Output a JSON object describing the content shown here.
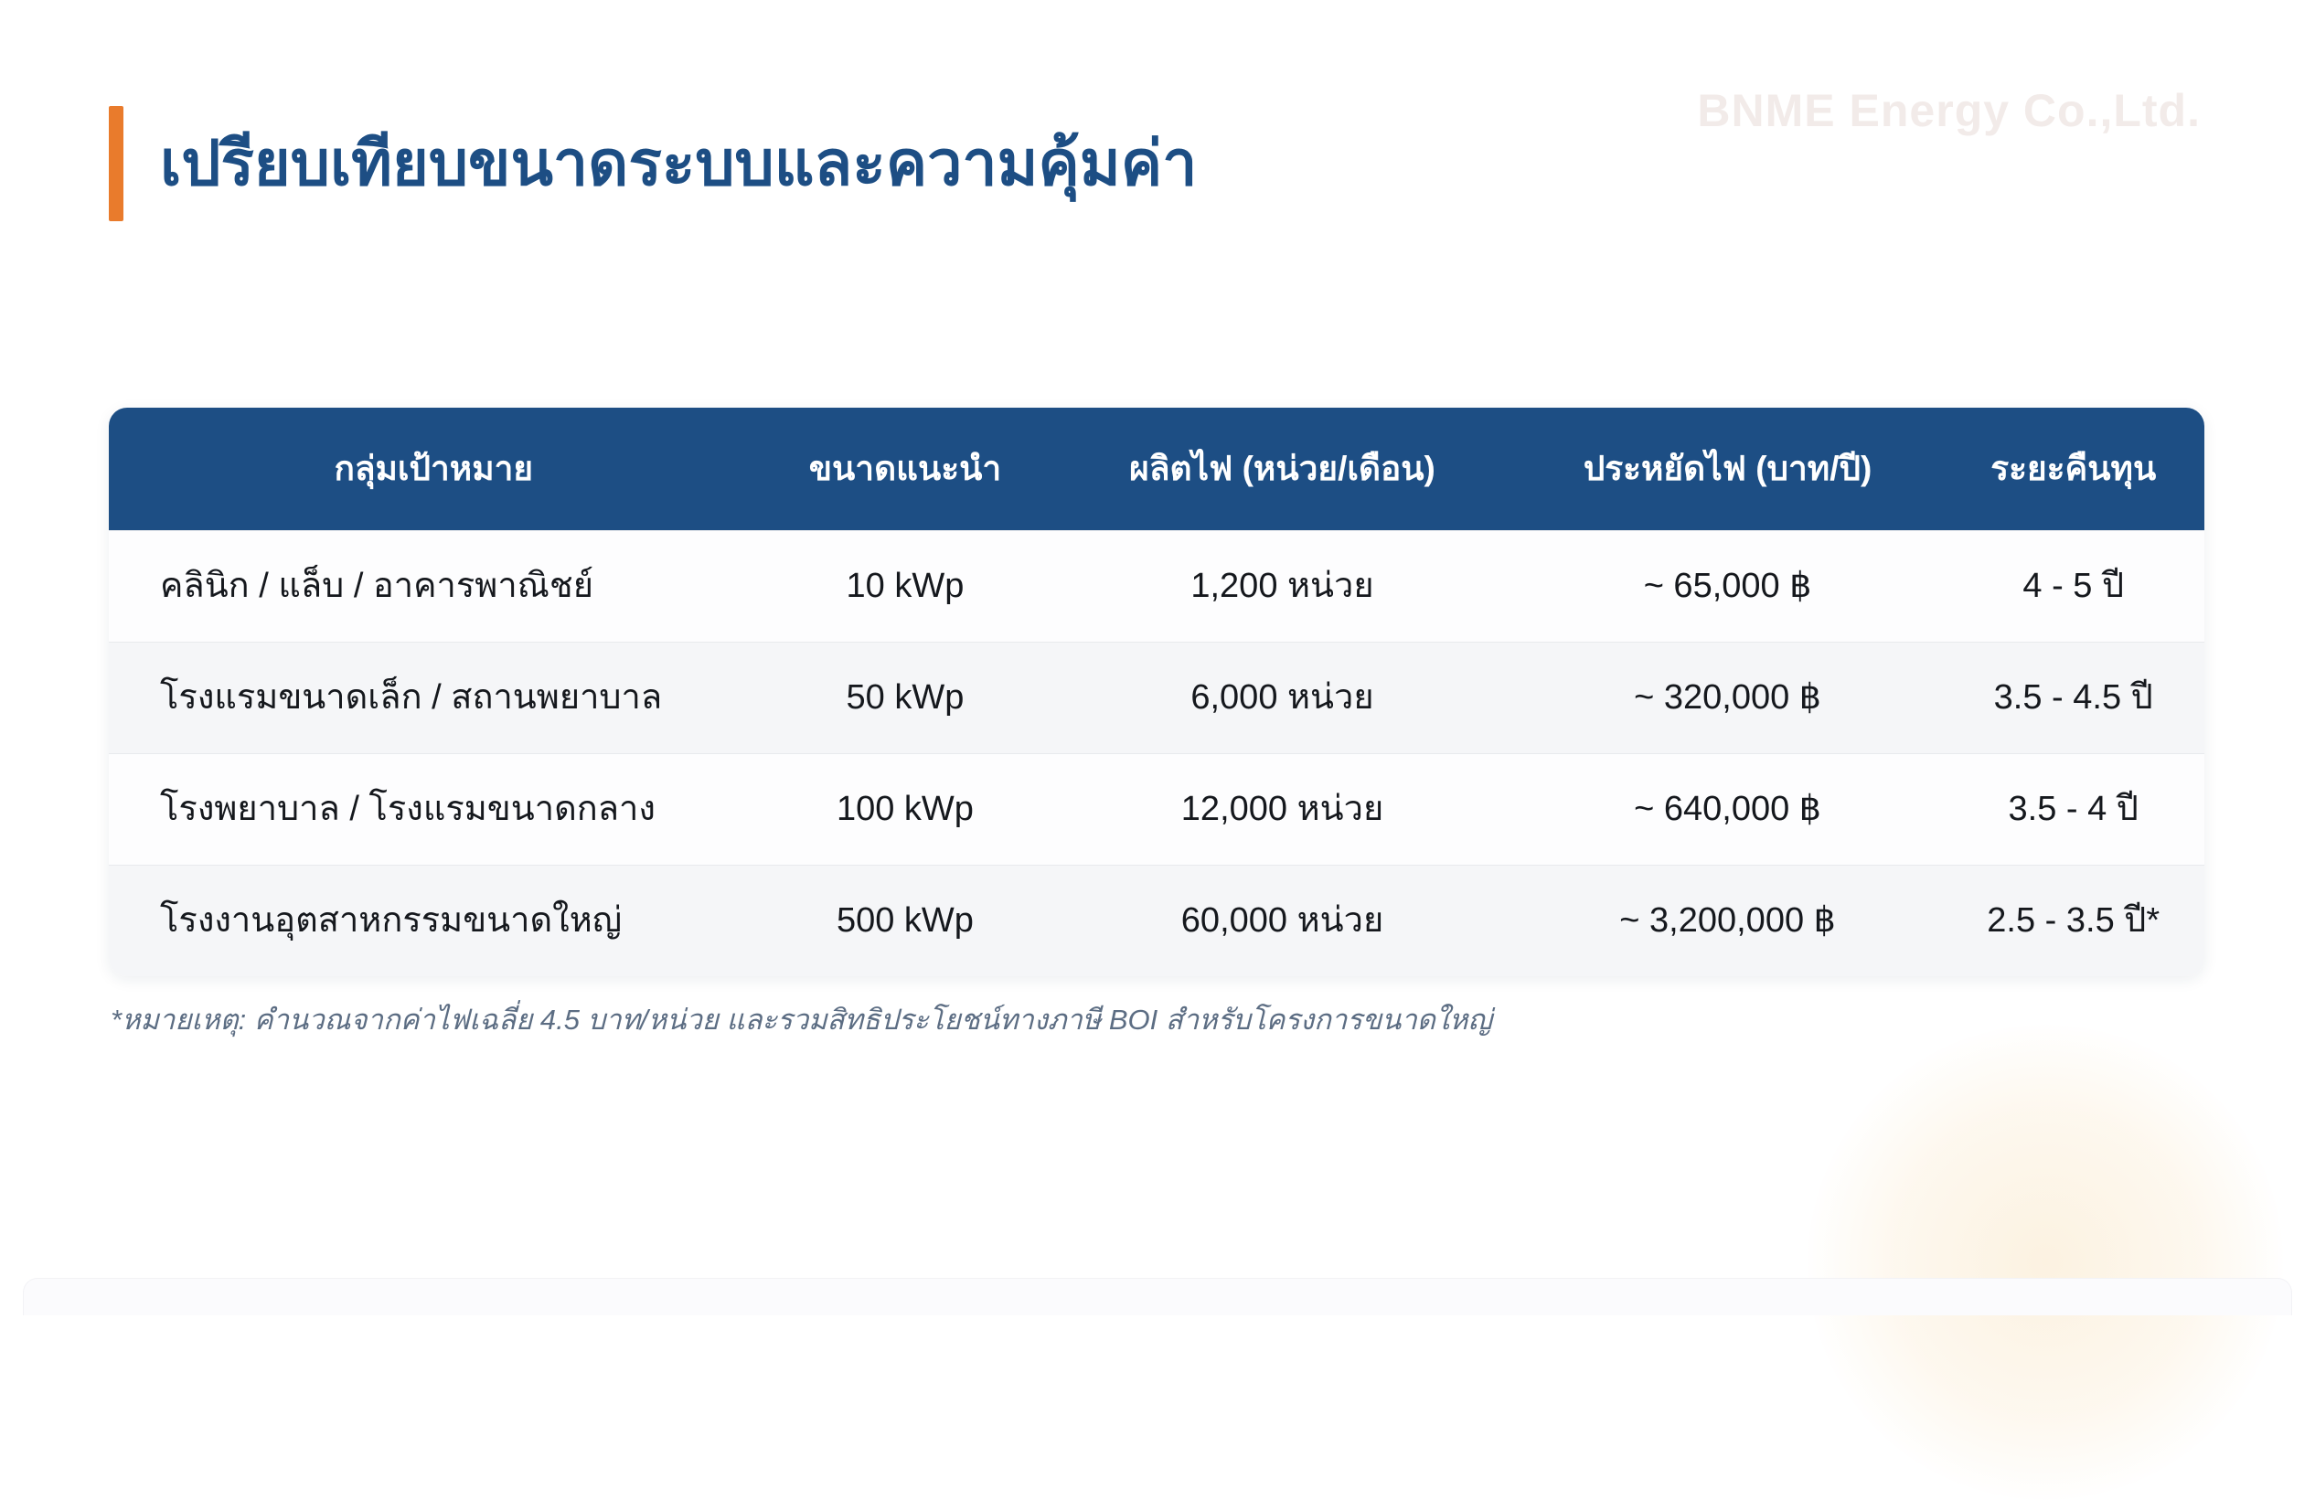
{
  "page": {
    "title": "เปรียบเทียบขนาดระบบและความคุ้มค่า",
    "watermark": "BNME Energy Co.,Ltd.",
    "footnote": "*หมายเหตุ: คำนวณจากค่าไฟเฉลี่ย 4.5 บาท/หน่วย และรวมสิทธิประโยชน์ทางภาษี BOI สำหรับโครงการขนาดใหญ่"
  },
  "colors": {
    "accent_orange": "#e97b2c",
    "header_navy": "#1d4e84",
    "title_blue": "#1d4e84",
    "row_stripe": "#f5f6f8",
    "footnote_gray": "#5c6d83",
    "glow_cream": "#fcf2e1"
  },
  "table": {
    "headers": [
      "กลุ่มเป้าหมาย",
      "ขนาดแนะนำ",
      "ผลิตไฟ (หน่วย/เดือน)",
      "ประหยัดไฟ (บาท/ปี)",
      "ระยะคืนทุน"
    ],
    "rows": [
      [
        "คลินิก / แล็บ / อาคารพาณิชย์",
        "10 kWp",
        "1,200 หน่วย",
        "~ 65,000 ฿",
        "4 - 5 ปี"
      ],
      [
        "โรงแรมขนาดเล็ก / สถานพยาบาล",
        "50 kWp",
        "6,000 หน่วย",
        "~ 320,000 ฿",
        "3.5 - 4.5 ปี"
      ],
      [
        "โรงพยาบาล / โรงแรมขนาดกลาง",
        "100 kWp",
        "12,000 หน่วย",
        "~ 640,000 ฿",
        "3.5 - 4 ปี"
      ],
      [
        "โรงงานอุตสาหกรรมขนาดใหญ่",
        "500 kWp",
        "60,000 หน่วย",
        "~ 3,200,000 ฿",
        "2.5 - 3.5 ปี*"
      ]
    ]
  }
}
